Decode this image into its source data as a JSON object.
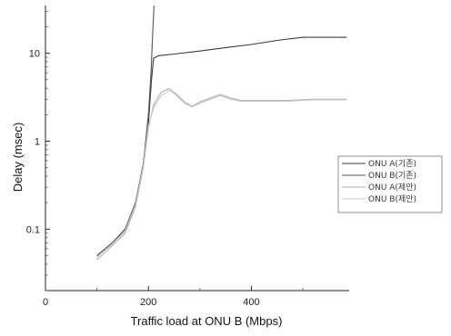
{
  "chart_data": {
    "type": "line",
    "title": "",
    "xlabel": "Traffic load at ONU B (Mbps)",
    "ylabel": "Delay (msec)",
    "xlim": [
      0,
      590
    ],
    "ylim": [
      0.02,
      35
    ],
    "yscale": "log",
    "x_ticks": [
      {
        "value": 0,
        "label": "0"
      },
      {
        "value": 200,
        "label": "200"
      },
      {
        "value": 400,
        "label": "400"
      }
    ],
    "y_ticks": [
      {
        "value": 0.1,
        "label": "0.1"
      },
      {
        "value": 1,
        "label": "1"
      },
      {
        "value": 10,
        "label": "10"
      }
    ],
    "grid": false,
    "legend_position": "right",
    "series": [
      {
        "name": "ONU A(기존)",
        "color": "#3a3a3a",
        "points": [
          [
            100,
            0.05
          ],
          [
            130,
            0.07
          ],
          [
            155,
            0.1
          ],
          [
            175,
            0.2
          ],
          [
            190,
            0.55
          ],
          [
            200,
            1.6
          ],
          [
            206,
            5
          ],
          [
            210,
            8.8
          ],
          [
            220,
            9.4
          ],
          [
            250,
            9.8
          ],
          [
            300,
            10.6
          ],
          [
            350,
            11.6
          ],
          [
            400,
            12.6
          ],
          [
            450,
            14.0
          ],
          [
            500,
            15.2
          ],
          [
            550,
            15.2
          ],
          [
            585,
            15.2
          ]
        ]
      },
      {
        "name": "ONU B(기존)",
        "color": "#555555",
        "points": [
          [
            100,
            0.05
          ],
          [
            130,
            0.07
          ],
          [
            155,
            0.1
          ],
          [
            175,
            0.2
          ],
          [
            190,
            0.55
          ],
          [
            200,
            2.0
          ],
          [
            205,
            6
          ],
          [
            208,
            15
          ],
          [
            211,
            35
          ]
        ]
      },
      {
        "name": "ONU A(제안)",
        "color": "#b0b0b0",
        "points": [
          [
            100,
            0.045
          ],
          [
            130,
            0.065
          ],
          [
            155,
            0.09
          ],
          [
            175,
            0.18
          ],
          [
            190,
            0.5
          ],
          [
            200,
            1.4
          ],
          [
            210,
            2.6
          ],
          [
            225,
            3.6
          ],
          [
            240,
            4.0
          ],
          [
            255,
            3.4
          ],
          [
            270,
            2.8
          ],
          [
            285,
            2.5
          ],
          [
            300,
            2.8
          ],
          [
            320,
            3.1
          ],
          [
            340,
            3.4
          ],
          [
            360,
            3.1
          ],
          [
            380,
            2.9
          ],
          [
            420,
            2.9
          ],
          [
            470,
            2.9
          ],
          [
            520,
            3.0
          ],
          [
            550,
            3.0
          ],
          [
            585,
            3.0
          ]
        ]
      },
      {
        "name": "ONU B(제안)",
        "color": "#c8c8c8",
        "points": [
          [
            100,
            0.048
          ],
          [
            130,
            0.068
          ],
          [
            155,
            0.095
          ],
          [
            175,
            0.19
          ],
          [
            190,
            0.52
          ],
          [
            200,
            1.5
          ],
          [
            210,
            2.4
          ],
          [
            225,
            3.3
          ],
          [
            240,
            3.8
          ],
          [
            255,
            3.3
          ],
          [
            270,
            2.7
          ],
          [
            285,
            2.45
          ],
          [
            300,
            2.7
          ],
          [
            320,
            3.0
          ],
          [
            340,
            3.3
          ],
          [
            360,
            3.0
          ],
          [
            380,
            2.85
          ],
          [
            420,
            2.85
          ],
          [
            470,
            2.85
          ],
          [
            520,
            2.95
          ],
          [
            550,
            2.95
          ],
          [
            585,
            2.95
          ]
        ]
      }
    ]
  }
}
